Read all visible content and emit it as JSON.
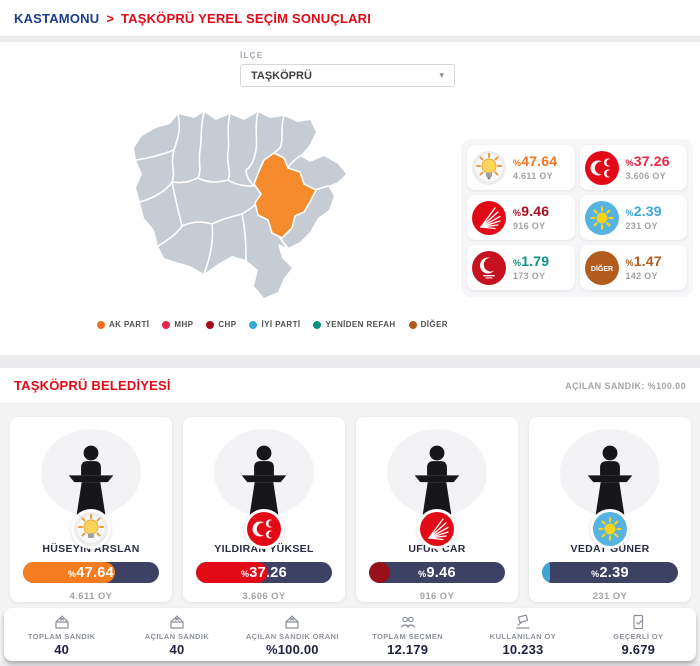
{
  "breadcrumb": {
    "province": "KASTAMONU",
    "separator": ">",
    "title": "TAŞKÖPRÜ YEREL SEÇİM SONUÇLARI"
  },
  "filter": {
    "label": "İLÇE",
    "value": "TAŞKÖPRÜ"
  },
  "misc": {
    "percent_sign": "%"
  },
  "map": {
    "highlight_color": "#f68b2e",
    "district_fill": "#c6ccd4"
  },
  "results": [
    {
      "party": "AK PARTİ",
      "percent": "47.64",
      "votes": "4.611 OY",
      "color": "#f4731d"
    },
    {
      "party": "MHP",
      "percent": "37.26",
      "votes": "3.606 OY",
      "color": "#ea2746"
    },
    {
      "party": "CHP",
      "percent": "9.46",
      "votes": "916 OY",
      "color": "#a50d1e"
    },
    {
      "party": "İYİ PARTİ",
      "percent": "2.39",
      "votes": "231 OY",
      "color": "#3aa6da"
    },
    {
      "party": "YENİDEN REFAH",
      "percent": "1.79",
      "votes": "173 OY",
      "color": "#0d9181"
    },
    {
      "party": "DİĞER",
      "percent": "1.47",
      "votes": "142 OY",
      "color": "#b25b1f"
    }
  ],
  "legend": [
    {
      "label": "AK PARTİ",
      "color": "#f2711c"
    },
    {
      "label": "MHP",
      "color": "#e8254d"
    },
    {
      "label": "CHP",
      "color": "#a50d1e"
    },
    {
      "label": "İYİ PARTİ",
      "color": "#3aa6da"
    },
    {
      "label": "YENİDEN REFAH",
      "color": "#0d9181"
    },
    {
      "label": "DİĞER",
      "color": "#b25b1f"
    }
  ],
  "municipality": {
    "title": "TAŞKÖPRÜ BELEDİYESİ",
    "ballot_status": "AÇILAN SANDIK: %100.00"
  },
  "candidates": [
    {
      "name": "HÜSEYİN ARSLAN",
      "party": "AK PARTİ",
      "percent": "47.64",
      "value": 47.64,
      "votes": "4.611 OY",
      "color": "#f57d20"
    },
    {
      "name": "YILDIRAN YÜKSEL",
      "party": "MHP",
      "percent": "37.26",
      "value": 37.26,
      "votes": "3.606 OY",
      "color": "#e30a17"
    },
    {
      "name": "UFUK CAR",
      "party": "CHP",
      "percent": "9.46",
      "value": 9.46,
      "votes": "916 OY",
      "color": "#97101c"
    },
    {
      "name": "VEDAT GÜNER",
      "party": "İYİ PARTİ",
      "percent": "2.39",
      "value": 2.39,
      "votes": "231 OY",
      "color": "#41a5da"
    }
  ],
  "stats": [
    {
      "label": "TOPLAM SANDIK",
      "value": "40"
    },
    {
      "label": "AÇILAN SANDIK",
      "value": "40"
    },
    {
      "label": "AÇILAN SANDIK ORANI",
      "value": "%100.00"
    },
    {
      "label": "TOPLAM SEÇMEN",
      "value": "12.179"
    },
    {
      "label": "KULLANILAN OY",
      "value": "10.233"
    },
    {
      "label": "GEÇERLİ OY",
      "value": "9.679"
    }
  ]
}
